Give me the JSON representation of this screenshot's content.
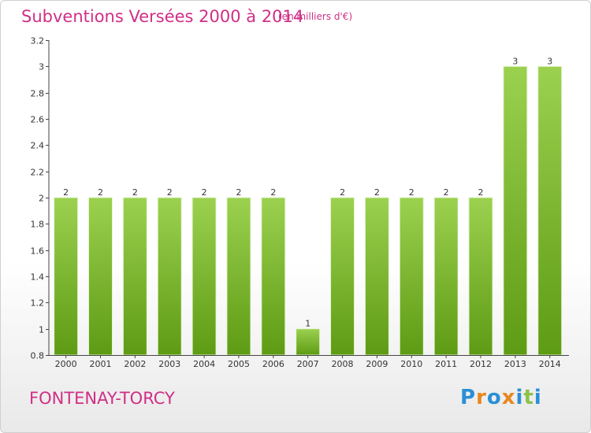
{
  "header": {
    "title": "Subventions Versées 2000 à 2014",
    "subtitle": "(en milliers d'€)"
  },
  "footer": {
    "city": "FONTENAY-TORCY",
    "brand": "Proxiti"
  },
  "colors": {
    "accent": "#d02f86",
    "bar_light": "#9bd14f",
    "bar_dark": "#5e9b14",
    "axis": "#444444",
    "brand_letters": [
      "#2a8fd6",
      "#e8871e",
      "#2a8fd6",
      "#e8871e",
      "#2a8fd6",
      "#8bc34a",
      "#2a8fd6"
    ]
  },
  "chart_data": {
    "type": "bar",
    "categories": [
      "2000",
      "2001",
      "2002",
      "2003",
      "2004",
      "2005",
      "2006",
      "2007",
      "2008",
      "2009",
      "2010",
      "2011",
      "2012",
      "2013",
      "2014"
    ],
    "values": [
      2,
      2,
      2,
      2,
      2,
      2,
      2,
      1,
      2,
      2,
      2,
      2,
      2,
      3,
      3
    ],
    "data_labels": [
      "2",
      "2",
      "2",
      "2",
      "2",
      "2",
      "2",
      "1",
      "2",
      "2",
      "2",
      "2",
      "2",
      "3",
      "3"
    ],
    "y_ticks": [
      0.8,
      1,
      1.2,
      1.4,
      1.6,
      1.8,
      2,
      2.2,
      2.4,
      2.6,
      2.8,
      3,
      3.2
    ],
    "y_tick_labels": [
      "0.8",
      "1",
      "1.2",
      "1.4",
      "1.6",
      "1.8",
      "2",
      "2.2",
      "2.4",
      "2.6",
      "2.8",
      "3",
      "3.2"
    ],
    "ylim": [
      0.8,
      3.2
    ],
    "grid": false,
    "title": "Subventions Versées 2000 à 2014",
    "xlabel": "",
    "ylabel": ""
  }
}
